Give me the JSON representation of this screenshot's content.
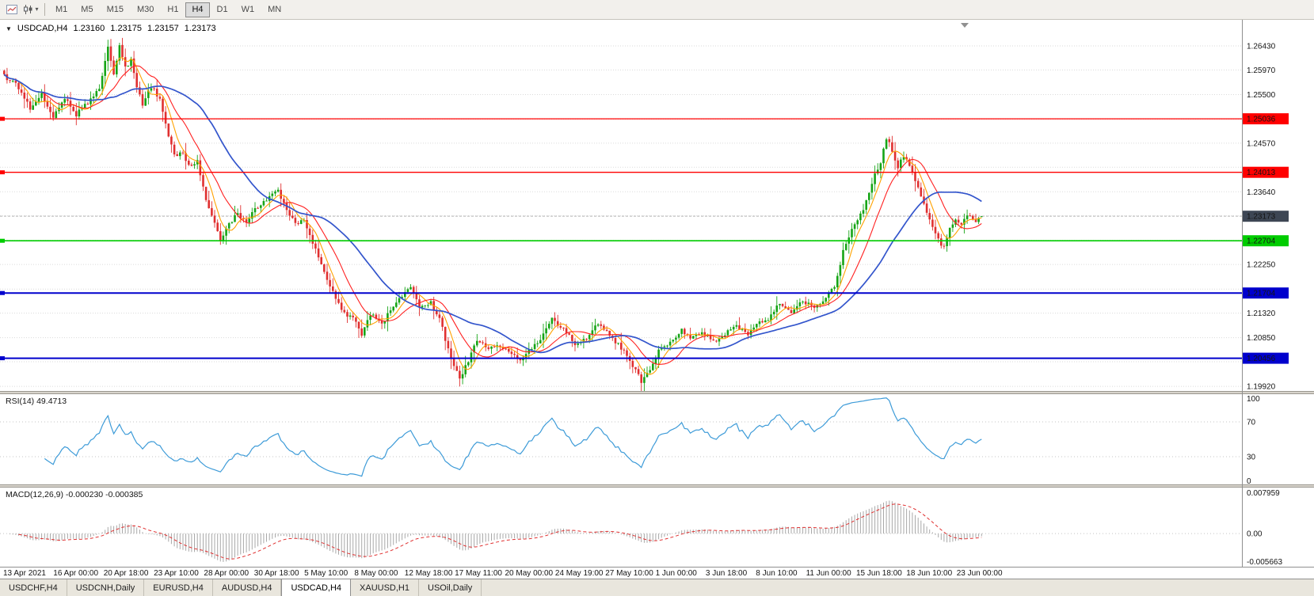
{
  "toolbar": {
    "timeframes": [
      "M1",
      "M5",
      "M15",
      "M30",
      "H1",
      "H4",
      "D1",
      "W1",
      "MN"
    ],
    "active_timeframe": "H4"
  },
  "chart_header": {
    "caret": "▼",
    "symbol": "USDCAD,H4",
    "open": "1.23160",
    "high": "1.23175",
    "low": "1.23157",
    "close": "1.23173"
  },
  "tabs": {
    "items": [
      "USDCHF,H4",
      "USDCNH,Daily",
      "EURUSD,H4",
      "AUDUSD,H4",
      "USDCAD,H4",
      "XAUUSD,H1",
      "USOil,Daily"
    ],
    "active": "USDCAD,H4"
  },
  "colors": {
    "bull": "#16a516",
    "bear": "#e03030",
    "ma_fast": "#ffa200",
    "ma_medium": "#ff2020",
    "ma_slow": "#3355cc",
    "level_red": "#ff0000",
    "level_green": "#00cc00",
    "level_blue": "#0000cd",
    "current_badge": "#3d4654",
    "grid": "#dadada",
    "rsi_line": "#3d9bd8",
    "macd_hist": "#a8a8a8",
    "macd_signal": "#e03030"
  },
  "chart_data": {
    "type": "candlestick",
    "symbol": "USDCAD",
    "timeframe": "H4",
    "price_axis": {
      "ylim": [
        1.1983,
        1.2693
      ],
      "gridlines": [
        "1.26430",
        "1.25970",
        "1.25500",
        "1.25030",
        "1.24570",
        "1.24110",
        "1.23640",
        "1.23180",
        "1.22710",
        "1.22250",
        "1.21780",
        "1.21320",
        "1.20850",
        "1.20390",
        "1.19920"
      ]
    },
    "num_candles": 340,
    "price_path_anchors": [
      [
        0,
        1.2585
      ],
      [
        4,
        1.257
      ],
      [
        9,
        1.2525
      ],
      [
        13,
        1.255
      ],
      [
        17,
        1.2505
      ],
      [
        21,
        1.2545
      ],
      [
        25,
        1.2512
      ],
      [
        29,
        1.2535
      ],
      [
        33,
        1.256
      ],
      [
        36,
        1.2638
      ],
      [
        38,
        1.2588
      ],
      [
        40,
        1.2648
      ],
      [
        42,
        1.26
      ],
      [
        44,
        1.2618
      ],
      [
        46,
        1.2562
      ],
      [
        48,
        1.2532
      ],
      [
        51,
        1.2565
      ],
      [
        54,
        1.2542
      ],
      [
        57,
        1.247
      ],
      [
        59,
        1.2432
      ],
      [
        62,
        1.2442
      ],
      [
        64,
        1.2412
      ],
      [
        67,
        1.2422
      ],
      [
        70,
        1.2352
      ],
      [
        73,
        1.2302
      ],
      [
        75,
        1.2272
      ],
      [
        78,
        1.2302
      ],
      [
        81,
        1.2322
      ],
      [
        84,
        1.2306
      ],
      [
        87,
        1.233
      ],
      [
        91,
        1.235
      ],
      [
        95,
        1.2365
      ],
      [
        98,
        1.2332
      ],
      [
        101,
        1.2302
      ],
      [
        104,
        1.2312
      ],
      [
        108,
        1.2252
      ],
      [
        111,
        1.2212
      ],
      [
        114,
        1.2172
      ],
      [
        118,
        1.2132
      ],
      [
        121,
        1.2122
      ],
      [
        124,
        1.2092
      ],
      [
        127,
        1.213
      ],
      [
        131,
        1.2112
      ],
      [
        134,
        1.2136
      ],
      [
        138,
        1.2165
      ],
      [
        141,
        1.2182
      ],
      [
        144,
        1.2142
      ],
      [
        148,
        1.2152
      ],
      [
        151,
        1.2122
      ],
      [
        154,
        1.2062
      ],
      [
        158,
        1.2006
      ],
      [
        161,
        1.2042
      ],
      [
        164,
        1.208
      ],
      [
        168,
        1.2062
      ],
      [
        171,
        1.2072
      ],
      [
        175,
        1.2056
      ],
      [
        179,
        1.2042
      ],
      [
        182,
        1.2062
      ],
      [
        186,
        1.2082
      ],
      [
        190,
        1.212
      ],
      [
        194,
        1.2102
      ],
      [
        198,
        1.2072
      ],
      [
        202,
        1.2082
      ],
      [
        205,
        1.2112
      ],
      [
        209,
        1.2096
      ],
      [
        213,
        1.2072
      ],
      [
        217,
        1.2042
      ],
      [
        221,
        1.2002
      ],
      [
        224,
        1.2022
      ],
      [
        227,
        1.2062
      ],
      [
        231,
        1.2076
      ],
      [
        235,
        1.21
      ],
      [
        238,
        1.2082
      ],
      [
        242,
        1.2096
      ],
      [
        246,
        1.2076
      ],
      [
        250,
        1.2092
      ],
      [
        254,
        1.2106
      ],
      [
        258,
        1.2092
      ],
      [
        261,
        1.2112
      ],
      [
        265,
        1.2122
      ],
      [
        269,
        1.215
      ],
      [
        273,
        1.2132
      ],
      [
        277,
        1.2156
      ],
      [
        281,
        1.2142
      ],
      [
        285,
        1.2162
      ],
      [
        288,
        1.2182
      ],
      [
        291,
        1.225
      ],
      [
        294,
        1.2292
      ],
      [
        298,
        1.2332
      ],
      [
        301,
        1.2382
      ],
      [
        304,
        1.2422
      ],
      [
        306,
        1.2468
      ],
      [
        308,
        1.2442
      ],
      [
        310,
        1.2412
      ],
      [
        312,
        1.2432
      ],
      [
        315,
        1.2402
      ],
      [
        317,
        1.2372
      ],
      [
        319,
        1.2342
      ],
      [
        321,
        1.2312
      ],
      [
        323,
        1.2282
      ],
      [
        326,
        1.2256
      ],
      [
        328,
        1.2292
      ],
      [
        330,
        1.2312
      ],
      [
        332,
        1.23
      ],
      [
        334,
        1.2322
      ],
      [
        337,
        1.2308
      ],
      [
        339,
        1.23173
      ]
    ],
    "levels": [
      {
        "price": 1.25036,
        "label": "1.25036",
        "color": "#ff0000",
        "width": 1.3
      },
      {
        "price": 1.24013,
        "label": "1.24013",
        "color": "#ff0000",
        "width": 1.3
      },
      {
        "price": 1.22704,
        "label": "1.22704",
        "color": "#00cc00",
        "width": 1.6
      },
      {
        "price": 1.21704,
        "label": "1.21704",
        "color": "#0000cd",
        "width": 2
      },
      {
        "price": 1.20456,
        "label": "1.20456",
        "color": "#0000cd",
        "width": 2
      }
    ],
    "current_price": {
      "value": 1.23173,
      "label": "1.23173"
    },
    "time_labels": [
      "13 Apr 2021",
      "16 Apr 00:00",
      "20 Apr 18:00",
      "23 Apr 10:00",
      "28 Apr 00:00",
      "30 Apr 18:00",
      "5 May 10:00",
      "8 May 00:00",
      "12 May 18:00",
      "17 May 11:00",
      "20 May 00:00",
      "24 May 19:00",
      "27 May 10:00",
      "1 Jun 00:00",
      "3 Jun 18:00",
      "8 Jun 10:00",
      "11 Jun 00:00",
      "15 Jun 18:00",
      "18 Jun 10:00",
      "23 Jun 00:00"
    ],
    "rsi": {
      "label": "RSI(14) 49.4713",
      "period": 14,
      "last": 49.4713,
      "axis": [
        {
          "label": "100",
          "value": 100
        },
        {
          "label": "70",
          "value": 70
        },
        {
          "label": "30",
          "value": 30
        },
        {
          "label": "0",
          "value": 0
        }
      ],
      "guide_levels": [
        70,
        30
      ]
    },
    "macd": {
      "label": "MACD(12,26,9) -0.000230 -0.000385",
      "fast": 12,
      "slow": 26,
      "signal": 9,
      "last_main": -0.00023,
      "last_signal": -0.000385,
      "axis": {
        "max": "0.007959",
        "zero": "0.00",
        "min": "-0.005663"
      },
      "axis_values": {
        "max": 0.007959,
        "min": -0.005663
      }
    }
  }
}
